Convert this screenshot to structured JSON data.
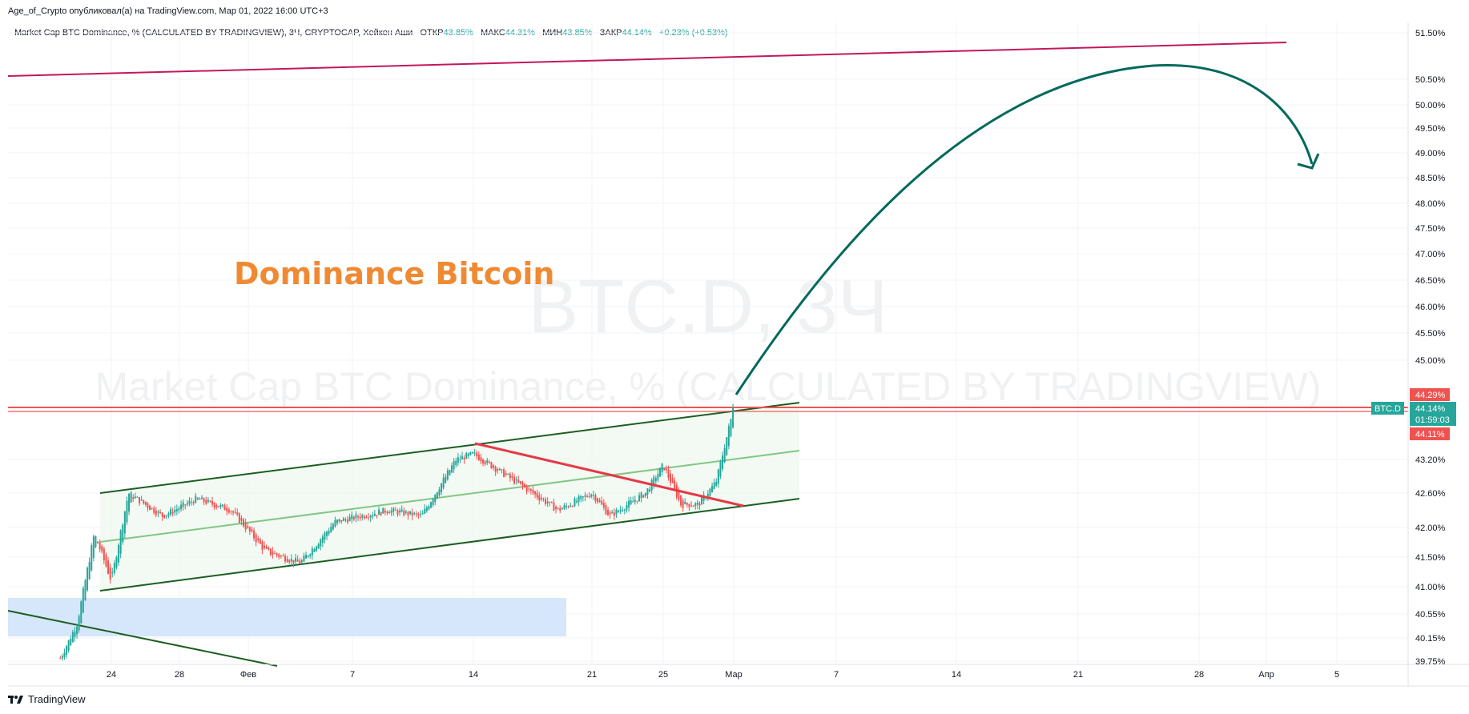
{
  "header": {
    "text": "Age_of_Crypto опубликовал(а) на TradingView.com, Мар 01, 2022 16:00 UTC+3"
  },
  "legend": {
    "title": "Market Cap BTC Dominance, % (CALCULATED BY TRADINGVIEW), 3Ч, CRYPTOCAP, Хейкен Аши",
    "open_label": "ОТКР",
    "open_value": "43.85%",
    "high_label": "МАКС",
    "high_value": "44.31%",
    "low_label": "МИН",
    "low_value": "43.85%",
    "close_label": "ЗАКР",
    "close_value": "44.14%",
    "change": "+0.23% (+0.53%)"
  },
  "watermark": {
    "symbol": "BTC.D, 3Ч",
    "description": "Market Cap BTC Dominance, % (CALCULATED BY TRADINGVIEW)"
  },
  "annotation": {
    "text": "Dominance Bitcoin",
    "color": "#f08a32"
  },
  "price_badges": {
    "symbol": "BTC.D",
    "last": "44.14%",
    "countdown": "01:59:03",
    "high": "44.29%",
    "low": "44.11%"
  },
  "colors": {
    "up": "#26a69a",
    "down": "#ef5350",
    "channel": "#1b5e20",
    "midline": "#81c784",
    "top_line": "#c2185b",
    "arrow": "#00695c",
    "zone": "#d6e6fb",
    "badge": "#26a69a",
    "badge_red": "#ef5350"
  },
  "footer": {
    "brand": "TradingView",
    "icon": "tradingview-logo-icon"
  },
  "chart_data": {
    "type": "candlestick",
    "chart_style": "heikin-ashi",
    "symbol": "CRYPTOCAP:BTC.D",
    "timeframe": "3Ч",
    "y_ticks": [
      "51.50%",
      "50.50%",
      "50.00%",
      "49.50%",
      "49.00%",
      "48.50%",
      "48.00%",
      "47.50%",
      "47.00%",
      "46.50%",
      "46.00%",
      "45.50%",
      "45.00%",
      "43.20%",
      "42.60%",
      "42.00%",
      "41.50%",
      "41.00%",
      "40.55%",
      "40.15%",
      "39.75%"
    ],
    "x_ticks": [
      "24",
      "28",
      "Фев",
      "7",
      "14",
      "21",
      "25",
      "Мар",
      "7",
      "14",
      "21",
      "28",
      "Апр",
      "5"
    ],
    "ylim": [
      39.75,
      51.5
    ],
    "y_scale": "log",
    "price_path": [
      {
        "date": "Jan 21",
        "value": 39.8
      },
      {
        "date": "Jan 22",
        "value": 40.4
      },
      {
        "date": "Jan 23",
        "value": 41.9
      },
      {
        "date": "Jan 24",
        "value": 41.1
      },
      {
        "date": "Jan 25",
        "value": 42.6
      },
      {
        "date": "Jan 27",
        "value": 42.2
      },
      {
        "date": "Jan 29",
        "value": 42.5
      },
      {
        "date": "Jan 31",
        "value": 42.3
      },
      {
        "date": "Feb 2",
        "value": 41.6
      },
      {
        "date": "Feb 4",
        "value": 41.4
      },
      {
        "date": "Feb 6",
        "value": 42.1
      },
      {
        "date": "Feb 9",
        "value": 42.3
      },
      {
        "date": "Feb 11",
        "value": 42.2
      },
      {
        "date": "Feb 13",
        "value": 43.2
      },
      {
        "date": "Feb 14",
        "value": 43.3
      },
      {
        "date": "Feb 17",
        "value": 42.7
      },
      {
        "date": "Feb 19",
        "value": 42.3
      },
      {
        "date": "Feb 21",
        "value": 42.6
      },
      {
        "date": "Feb 22",
        "value": 42.2
      },
      {
        "date": "Feb 24",
        "value": 42.6
      },
      {
        "date": "Feb 25",
        "value": 43.1
      },
      {
        "date": "Feb 26",
        "value": 42.4
      },
      {
        "date": "Feb 27",
        "value": 42.4
      },
      {
        "date": "Feb 28",
        "value": 42.8
      },
      {
        "date": "Mar 1",
        "value": 44.14
      }
    ],
    "horizontal_levels": [
      44.29,
      44.11
    ],
    "last_price": 44.14,
    "drawings": [
      "ascending channel",
      "descending trend line",
      "projection arrow to ~48.8%",
      "support zone 40.15%-40.85%"
    ]
  }
}
